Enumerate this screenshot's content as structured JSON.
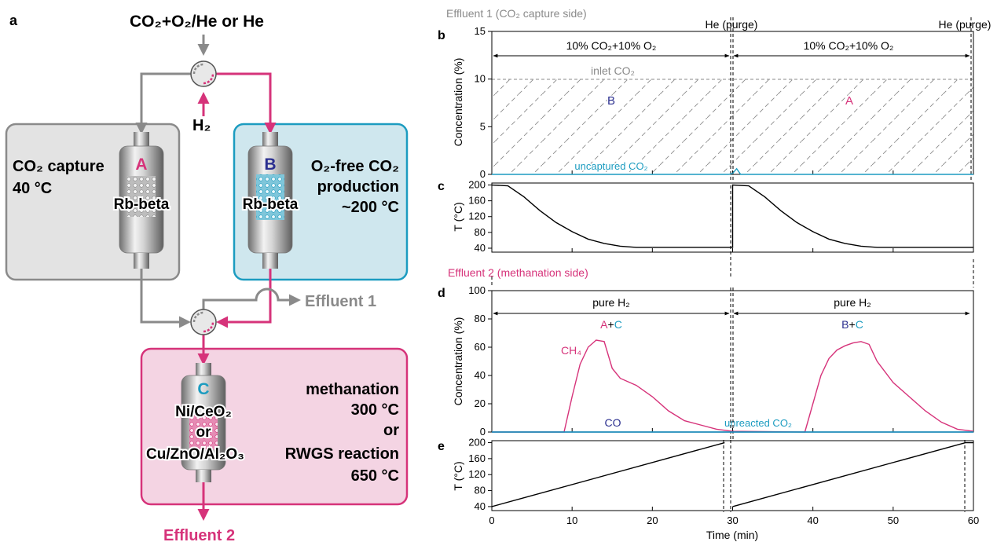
{
  "schematic": {
    "panel_label": "a",
    "feed": "CO₂+O₂/He or He",
    "h2": "H₂",
    "box_capture": {
      "title_line1": "CO₂ capture",
      "title_line2": "40 °C"
    },
    "box_production": {
      "title_line1": "O₂-free CO₂",
      "title_line2": "production",
      "title_line3": "~200 °C"
    },
    "box_methanation": {
      "line1": "methanation",
      "line2": "300 °C",
      "line3": "or",
      "line4": "RWGS reaction",
      "line5": "650 °C"
    },
    "reactor_a": {
      "letter": "A",
      "material": "Rb-beta"
    },
    "reactor_b": {
      "letter": "B",
      "material": "Rb-beta"
    },
    "reactor_c": {
      "letter": "C",
      "material1": "Ni/CeO₂",
      "material_or": "or",
      "material2": "Cu/ZnO/Al₂O₃"
    },
    "effluent1": "Effluent 1",
    "effluent2": "Effluent 2"
  },
  "colors": {
    "gray": "#8a8a8a",
    "magenta": "#d6337a",
    "teal": "#1c9cc0",
    "navy": "#2b2f8f",
    "capture_fill": "#e3e3e3",
    "production_fill": "#cfe7ee",
    "methanation_fill": "#f4d4e3"
  },
  "plots": {
    "effluent1_title": "Effluent 1 (CO₂ capture side)",
    "effluent2_title": "Effluent 2 (methanation side)",
    "purge1": "He (purge)",
    "purge2": "He (purge)",
    "panel_b": "b",
    "panel_c": "c",
    "panel_d": "d",
    "panel_e": "e",
    "b_window1": "10% CO₂+10% O₂",
    "b_window2": "10% CO₂+10% O₂",
    "inlet_co2": "inlet CO₂",
    "b_region1": "B",
    "b_region2": "A",
    "uncaptured": "uncaptured CO₂",
    "d_window1": "pure H₂",
    "d_window2": "pure H₂",
    "d_label1_a": "A",
    "d_label1_plus": "+",
    "d_label1_c": "C",
    "d_label2_b": "B",
    "d_label2_plus": "+",
    "d_label2_c": "C",
    "ch4": "CH₄",
    "co": "CO",
    "unreacted": "unreacted CO₂",
    "ylabel_conc_b": "Concentration (%)",
    "ylabel_conc_d": "Concentration (%)",
    "ylabel_t_c": "T (°C)",
    "ylabel_t_e": "T (°C)",
    "xlabel": "Time (min)",
    "b_yticks": [
      "15",
      "10",
      "5",
      "0"
    ],
    "c_yticks": [
      "200",
      "160",
      "120",
      "80",
      "40"
    ],
    "d_yticks": [
      "100",
      "80",
      "60",
      "40",
      "20",
      "0"
    ],
    "e_yticks": [
      "200",
      "160",
      "120",
      "80",
      "40"
    ],
    "xticks": [
      "0",
      "10",
      "20",
      "30",
      "40",
      "50",
      "60"
    ]
  },
  "chart_data": [
    {
      "type": "line",
      "panel": "b",
      "xlabel": "",
      "ylabel": "Concentration (%)",
      "xlim": [
        0,
        60
      ],
      "ylim": [
        0,
        15
      ],
      "series": [
        {
          "name": "inlet CO₂",
          "x": [
            0,
            60
          ],
          "y": [
            10,
            10
          ]
        },
        {
          "name": "uncaptured CO₂",
          "x": [
            0,
            29.5,
            30,
            30.5,
            31,
            60
          ],
          "y": [
            0,
            0,
            0.1,
            0.6,
            0,
            0
          ]
        }
      ]
    },
    {
      "type": "line",
      "panel": "c",
      "xlabel": "",
      "ylabel": "T (°C)",
      "xlim": [
        0,
        60
      ],
      "ylim": [
        30,
        205
      ],
      "series": [
        {
          "x": [
            0,
            2,
            4,
            6,
            8,
            10,
            12,
            14,
            16,
            18,
            30,
            30,
            32,
            34,
            36,
            38,
            40,
            42,
            44,
            46,
            48,
            60
          ],
          "y": [
            200,
            198,
            170,
            135,
            105,
            82,
            63,
            52,
            45,
            42,
            42,
            200,
            198,
            170,
            135,
            105,
            82,
            63,
            52,
            45,
            42,
            42
          ]
        }
      ]
    },
    {
      "type": "line",
      "panel": "d",
      "xlabel": "",
      "ylabel": "Concentration (%)",
      "xlim": [
        0,
        60
      ],
      "ylim": [
        0,
        100
      ],
      "series": [
        {
          "name": "CH₄",
          "x": [
            0,
            9,
            10,
            11,
            12,
            13,
            14,
            15,
            16,
            18,
            20,
            22,
            24,
            26,
            28,
            30,
            39,
            40,
            41,
            42,
            43,
            44,
            45,
            46,
            47,
            48,
            50,
            52,
            54,
            56,
            58,
            60
          ],
          "y": [
            0,
            0,
            25,
            48,
            60,
            65,
            64,
            45,
            38,
            33,
            25,
            15,
            8,
            5,
            2,
            0.5,
            0,
            20,
            40,
            52,
            58,
            61,
            63,
            64,
            62,
            50,
            35,
            25,
            15,
            7,
            2,
            0.5
          ]
        },
        {
          "name": "CO",
          "x": [
            0,
            60
          ],
          "y": [
            0,
            0
          ]
        },
        {
          "name": "unreacted CO₂",
          "x": [
            0,
            60
          ],
          "y": [
            0,
            0
          ]
        }
      ]
    },
    {
      "type": "line",
      "panel": "e",
      "xlabel": "Time (min)",
      "ylabel": "T (°C)",
      "xlim": [
        0,
        60
      ],
      "ylim": [
        30,
        205
      ],
      "series": [
        {
          "x": [
            0,
            29,
            30,
            59,
            60
          ],
          "y": [
            40,
            200,
            40,
            200,
            200
          ]
        }
      ]
    }
  ]
}
